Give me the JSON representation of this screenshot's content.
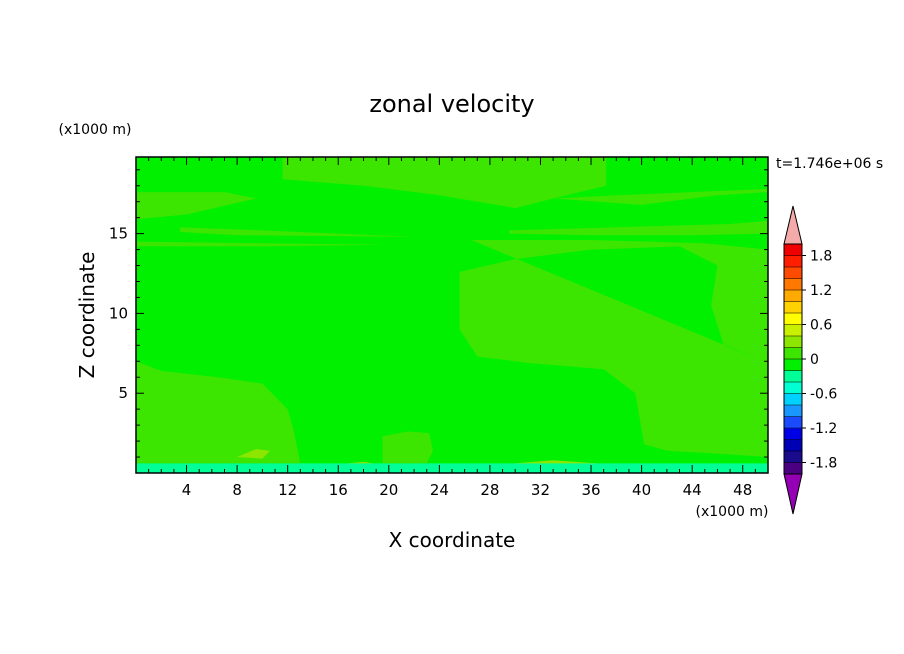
{
  "chart_data": {
    "type": "heatmap",
    "title": "zonal velocity",
    "xlabel": "X coordinate",
    "ylabel": "Z coordinate",
    "x_unit": "(x1000 m)",
    "y_unit": "(x1000 m)",
    "time_label": "t=1.746e+06 s",
    "xlim": [
      0,
      50
    ],
    "ylim": [
      0,
      19.8
    ],
    "x_ticks": [
      4,
      8,
      12,
      16,
      20,
      24,
      28,
      32,
      36,
      40,
      44,
      48
    ],
    "y_ticks": [
      5,
      10,
      15
    ],
    "colorbar": {
      "min": -2.0,
      "max": 2.0,
      "step": 0.2,
      "tick_labels": [
        "1.8",
        "1.2",
        "0.6",
        "0",
        "-0.6",
        "-1.2",
        "-1.8"
      ],
      "tick_values": [
        1.8,
        1.2,
        0.6,
        0,
        -0.6,
        -1.2,
        -1.8
      ],
      "colors": [
        "#4b0082",
        "#1a0a8c",
        "#0000b4",
        "#0000e6",
        "#1a4bff",
        "#1a96ff",
        "#00d2ff",
        "#00ffd2",
        "#00ff96",
        "#00f000",
        "#3ce600",
        "#8ce600",
        "#c8f000",
        "#ffff00",
        "#ffd200",
        "#ffaa00",
        "#ff7800",
        "#ff4b00",
        "#ff1e00",
        "#f00000"
      ],
      "under_color": "#9600b4",
      "over_color": "#f5aaaa"
    },
    "regions": [
      {
        "value": 0.1,
        "name": "top-band",
        "polygon": [
          [
            11.6,
            19.8
          ],
          [
            37.2,
            19.8
          ],
          [
            37.2,
            18.0
          ],
          [
            33.0,
            17.2
          ],
          [
            30.0,
            16.6
          ],
          [
            24.0,
            17.4
          ],
          [
            18.0,
            18.0
          ],
          [
            11.6,
            18.4
          ]
        ]
      },
      {
        "value": 0.1,
        "name": "right-upper",
        "polygon": [
          [
            50,
            17.6
          ],
          [
            46.0,
            17.4
          ],
          [
            40.0,
            16.8
          ],
          [
            33.0,
            17.2
          ],
          [
            38.0,
            17.4
          ],
          [
            50,
            17.8
          ]
        ]
      },
      {
        "value": 0.1,
        "name": "left-band",
        "polygon": [
          [
            0,
            17.6
          ],
          [
            7.0,
            17.6
          ],
          [
            9.5,
            17.2
          ],
          [
            4.0,
            16.2
          ],
          [
            0,
            15.9
          ]
        ]
      },
      {
        "value": 0.1,
        "name": "band-15",
        "polygon": [
          [
            3.5,
            15.4
          ],
          [
            10.0,
            15.2
          ],
          [
            22.0,
            14.8
          ],
          [
            8.0,
            14.9
          ],
          [
            3.5,
            15.1
          ]
        ]
      },
      {
        "value": 0.1,
        "name": "band-14",
        "polygon": [
          [
            0,
            14.5
          ],
          [
            10.0,
            14.4
          ],
          [
            20.0,
            14.3
          ],
          [
            10.0,
            14.2
          ],
          [
            0,
            14.2
          ]
        ]
      },
      {
        "value": 0.1,
        "name": "right-band-15",
        "polygon": [
          [
            29.5,
            15.2
          ],
          [
            38.0,
            15.4
          ],
          [
            47.0,
            15.6
          ],
          [
            50,
            15.8
          ],
          [
            50,
            15.0
          ],
          [
            44.0,
            14.9
          ],
          [
            36.0,
            14.9
          ],
          [
            29.5,
            15.0
          ]
        ]
      },
      {
        "value": 0.1,
        "name": "central-right",
        "polygon": [
          [
            26.5,
            14.6
          ],
          [
            36.0,
            14.6
          ],
          [
            45.0,
            14.4
          ],
          [
            50,
            14.0
          ],
          [
            50,
            6.9
          ],
          [
            46.5,
            8.0
          ],
          [
            45.5,
            10.5
          ],
          [
            46.0,
            13.0
          ],
          [
            43.0,
            14.2
          ],
          [
            36.0,
            14.0
          ],
          [
            30.0,
            13.4
          ],
          [
            25.6,
            12.6
          ],
          [
            25.6,
            9.0
          ],
          [
            27.0,
            7.3
          ],
          [
            31.0,
            6.9
          ],
          [
            37.0,
            6.5
          ],
          [
            39.5,
            5.0
          ],
          [
            40.2,
            1.8
          ],
          [
            42.0,
            1.4
          ],
          [
            46.0,
            1.2
          ],
          [
            50,
            1.0
          ],
          [
            50,
            6.9
          ]
        ]
      },
      {
        "value": 0.1,
        "name": "left-lower",
        "polygon": [
          [
            0,
            7.0
          ],
          [
            2.0,
            6.4
          ],
          [
            6.5,
            6.0
          ],
          [
            10.0,
            5.6
          ],
          [
            12.0,
            4.0
          ],
          [
            12.5,
            2.6
          ],
          [
            13.0,
            0.6
          ],
          [
            0,
            0.6
          ]
        ]
      },
      {
        "value": 0.1,
        "name": "bump-20",
        "polygon": [
          [
            19.5,
            0.6
          ],
          [
            19.5,
            2.3
          ],
          [
            21.5,
            2.6
          ],
          [
            23.2,
            2.5
          ],
          [
            23.5,
            1.4
          ],
          [
            23.0,
            0.6
          ]
        ]
      },
      {
        "value": 0.3,
        "name": "bottom-yellow-1",
        "polygon": [
          [
            8.0,
            1.0
          ],
          [
            9.5,
            1.5
          ],
          [
            10.6,
            1.4
          ],
          [
            10.0,
            0.9
          ]
        ]
      },
      {
        "value": 0.3,
        "name": "bottom-yellow-2",
        "polygon": [
          [
            15.0,
            0.45
          ],
          [
            18.0,
            0.7
          ],
          [
            19.5,
            0.5
          ]
        ]
      },
      {
        "value": 0.3,
        "name": "bottom-yellow-3",
        "polygon": [
          [
            27.5,
            0.45
          ],
          [
            33.0,
            0.8
          ],
          [
            36.5,
            0.6
          ],
          [
            34.0,
            0.4
          ]
        ]
      },
      {
        "value": -0.3,
        "name": "bottom-cyan",
        "polygon": [
          [
            0,
            0.6
          ],
          [
            50,
            0.6
          ],
          [
            50,
            0
          ],
          [
            0,
            0
          ]
        ]
      },
      {
        "value": 0.0,
        "name": "bottom-light-left",
        "polygon": [
          [
            5.5,
            1.2
          ],
          [
            6.5,
            2.0
          ],
          [
            7.5,
            1.6
          ],
          [
            7.0,
            0.8
          ],
          [
            5.8,
            0.8
          ]
        ]
      }
    ],
    "background_value": -0.1
  }
}
